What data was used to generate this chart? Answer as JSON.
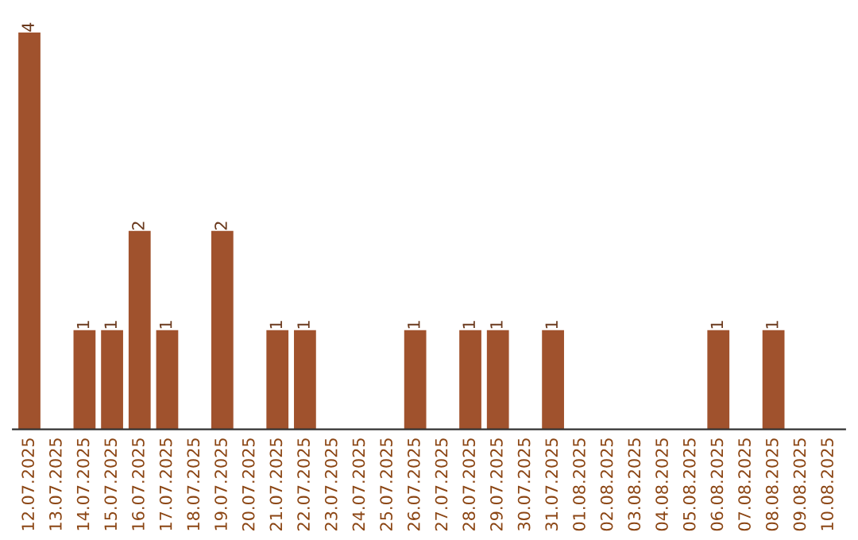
{
  "chart_data": {
    "type": "bar",
    "categories": [
      "12.07.2025",
      "13.07.2025",
      "14.07.2025",
      "15.07.2025",
      "16.07.2025",
      "17.07.2025",
      "18.07.2025",
      "19.07.2025",
      "20.07.2025",
      "21.07.2025",
      "22.07.2025",
      "23.07.2025",
      "24.07.2025",
      "25.07.2025",
      "26.07.2025",
      "27.07.2025",
      "28.07.2025",
      "29.07.2025",
      "30.07.2025",
      "31.07.2025",
      "01.08.2025",
      "02.08.2025",
      "03.08.2025",
      "04.08.2025",
      "05.08.2025",
      "06.08.2025",
      "07.08.2025",
      "08.08.2025",
      "09.08.2025",
      "10.08.2025"
    ],
    "values": [
      4,
      0,
      1,
      1,
      2,
      1,
      0,
      2,
      0,
      1,
      1,
      0,
      0,
      0,
      1,
      0,
      1,
      1,
      0,
      1,
      0,
      0,
      0,
      0,
      0,
      1,
      0,
      1,
      0,
      0
    ],
    "value_labels": [
      "4",
      null,
      "1",
      "1",
      "2",
      "1",
      null,
      "2",
      null,
      "1",
      "1",
      null,
      null,
      null,
      "1",
      null,
      "1",
      "1",
      null,
      "1",
      null,
      null,
      null,
      null,
      null,
      "1",
      null,
      "1",
      null,
      null
    ],
    "color": "#a0522d",
    "tick_labels": "x",
    "grid": false,
    "legend": false
  }
}
